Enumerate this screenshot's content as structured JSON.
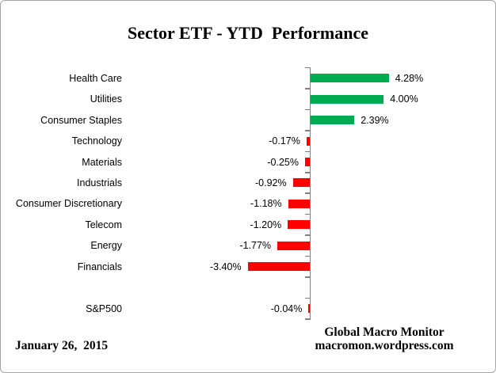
{
  "title": "Sector ETF - YTD  Performance",
  "chart_data": {
    "type": "bar",
    "orientation": "horizontal",
    "title": "Sector ETF - YTD  Performance",
    "unit": "%",
    "categories": [
      "Health Care",
      "Utilities",
      "Consumer Staples",
      "Technology",
      "Materials",
      "Industrials",
      "Consumer Discretionary",
      "Telecom",
      "Energy",
      "Financials",
      "",
      "S&P500"
    ],
    "values": [
      4.28,
      4.0,
      2.39,
      -0.17,
      -0.25,
      -0.92,
      -1.18,
      -1.2,
      -1.77,
      -3.4,
      null,
      -0.04
    ],
    "value_labels": [
      "4.28%",
      "4.00%",
      "2.39%",
      "-0.17%",
      "-0.25%",
      "-0.92%",
      "-1.18%",
      "-1.20%",
      "-1.77%",
      "-3.40%",
      "",
      "-0.04%"
    ],
    "positive_color": "#00AC52",
    "negative_color": "#FF0000",
    "axis_color": "#808080",
    "xlim": [
      -4,
      5
    ],
    "grid": false,
    "legend": false
  },
  "footer": {
    "date": "January 26,  2015",
    "source_line1": "Global Macro Monitor",
    "source_line2": "macromon.wordpress.com"
  }
}
